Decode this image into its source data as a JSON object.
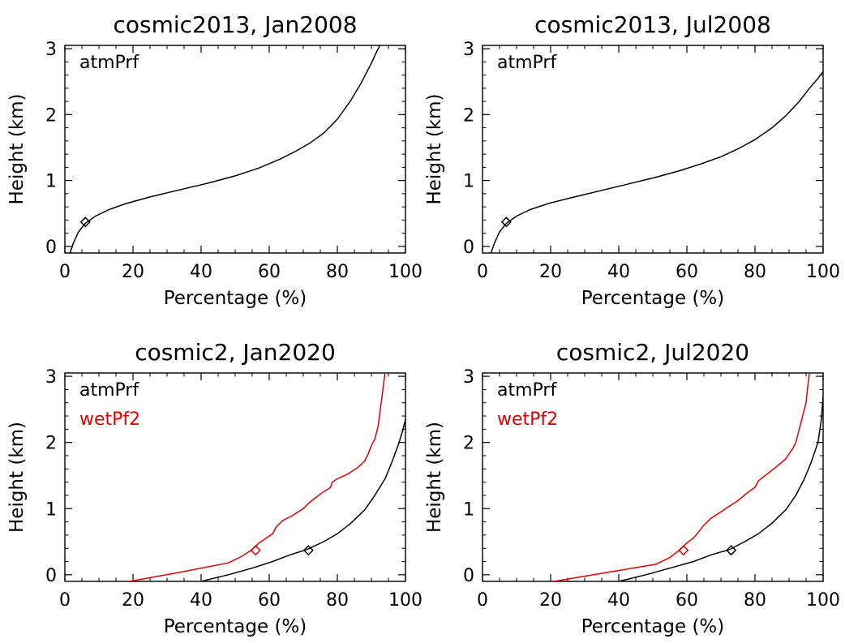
{
  "chart_data": [
    {
      "type": "line",
      "title": "cosmic2013, Jan2008",
      "xlabel": "Percentage (%)",
      "ylabel": "Height (km)",
      "xlim": [
        0,
        100
      ],
      "ylim": [
        -0.1,
        3.05
      ],
      "xticks": [
        "0",
        "20",
        "40",
        "60",
        "80",
        "100"
      ],
      "yticks": [
        "0",
        "1",
        "2",
        "3"
      ],
      "legend": "top-left",
      "series": [
        {
          "name": "atmPrf",
          "color": "#000000",
          "x": [
            1.5,
            2.5,
            4,
            6,
            9,
            13,
            18,
            25,
            33,
            42,
            50,
            57,
            63,
            68,
            72,
            76,
            80,
            84,
            87,
            90,
            91.5,
            92.5
          ],
          "y": [
            -0.1,
            0.05,
            0.22,
            0.35,
            0.46,
            0.56,
            0.65,
            0.75,
            0.85,
            0.96,
            1.07,
            1.19,
            1.32,
            1.45,
            1.57,
            1.72,
            1.93,
            2.22,
            2.48,
            2.78,
            2.95,
            3.05
          ],
          "marker": {
            "x": 6,
            "y": 0.37
          }
        }
      ]
    },
    {
      "type": "line",
      "title": "cosmic2013, Jul2008",
      "xlabel": "Percentage (%)",
      "ylabel": "Height (km)",
      "xlim": [
        0,
        100
      ],
      "ylim": [
        -0.1,
        3.05
      ],
      "xticks": [
        "0",
        "20",
        "40",
        "60",
        "80",
        "100"
      ],
      "yticks": [
        "0",
        "1",
        "2",
        "3"
      ],
      "legend": "top-left",
      "series": [
        {
          "name": "atmPrf",
          "color": "#000000",
          "x": [
            2.5,
            3.5,
            5,
            7,
            10,
            14,
            20,
            27,
            35,
            43,
            51,
            58,
            64,
            70,
            75,
            80,
            85,
            89,
            93,
            96,
            98.5,
            100
          ],
          "y": [
            -0.1,
            0.05,
            0.22,
            0.35,
            0.46,
            0.56,
            0.66,
            0.75,
            0.85,
            0.95,
            1.05,
            1.15,
            1.25,
            1.36,
            1.48,
            1.62,
            1.8,
            1.98,
            2.2,
            2.4,
            2.55,
            2.65
          ],
          "marker": {
            "x": 7,
            "y": 0.37
          }
        }
      ]
    },
    {
      "type": "line",
      "title": "cosmic2, Jan2020",
      "xlabel": "Percentage (%)",
      "ylabel": "Height (km)",
      "xlim": [
        0,
        100
      ],
      "ylim": [
        -0.1,
        3.05
      ],
      "xticks": [
        "0",
        "20",
        "40",
        "60",
        "80",
        "100"
      ],
      "yticks": [
        "0",
        "1",
        "2",
        "3"
      ],
      "legend": "top-left",
      "series": [
        {
          "name": "atmPrf",
          "color": "#000000",
          "x": [
            40,
            48,
            55,
            61,
            66,
            71,
            76,
            80,
            84,
            88,
            91,
            94,
            96,
            98,
            99.3,
            100
          ],
          "y": [
            -0.1,
            0.0,
            0.1,
            0.2,
            0.3,
            0.38,
            0.5,
            0.62,
            0.78,
            0.98,
            1.2,
            1.45,
            1.7,
            1.98,
            2.2,
            2.35
          ]
        },
        {
          "name": "wetPf2",
          "color": "#e00000",
          "x": [
            19,
            33,
            48,
            52,
            55,
            57,
            59,
            61,
            62,
            64,
            67,
            70,
            72,
            75,
            78,
            78.5,
            80,
            83,
            86,
            88,
            89,
            90,
            91,
            92,
            92.5,
            93,
            93.5,
            94
          ],
          "y": [
            -0.1,
            0.03,
            0.18,
            0.28,
            0.38,
            0.48,
            0.55,
            0.62,
            0.72,
            0.82,
            0.9,
            1.0,
            1.1,
            1.22,
            1.32,
            1.4,
            1.45,
            1.52,
            1.62,
            1.72,
            1.82,
            1.95,
            2.05,
            2.25,
            2.45,
            2.65,
            2.85,
            3.05
          ]
        }
      ],
      "markers": [
        {
          "series": "atmPrf",
          "x": 71.5,
          "y": 0.37
        },
        {
          "series": "wetPf2",
          "x": 56,
          "y": 0.37
        }
      ]
    },
    {
      "type": "line",
      "title": "cosmic2, Jul2020",
      "xlabel": "Percentage (%)",
      "ylabel": "Height (km)",
      "xlim": [
        0,
        100
      ],
      "ylim": [
        -0.1,
        3.05
      ],
      "xticks": [
        "0",
        "20",
        "40",
        "60",
        "80",
        "100"
      ],
      "yticks": [
        "0",
        "1",
        "2",
        "3"
      ],
      "legend": "top-left",
      "series": [
        {
          "name": "atmPrf",
          "color": "#000000",
          "x": [
            40,
            48,
            55,
            62,
            67,
            72.5,
            77,
            81,
            85,
            89,
            92,
            94.5,
            96.5,
            98.5,
            99.5,
            100
          ],
          "y": [
            -0.1,
            0.0,
            0.1,
            0.2,
            0.3,
            0.38,
            0.5,
            0.62,
            0.78,
            0.98,
            1.2,
            1.45,
            1.7,
            2.0,
            2.35,
            2.7
          ]
        },
        {
          "name": "wetPf2",
          "color": "#e00000",
          "x": [
            21,
            36,
            51,
            55,
            58,
            60,
            62,
            63.5,
            65,
            67,
            70,
            72,
            75,
            78,
            80,
            81,
            83,
            86,
            89,
            91,
            92,
            93,
            94,
            95,
            95.5,
            96
          ],
          "y": [
            -0.1,
            0.03,
            0.16,
            0.26,
            0.38,
            0.48,
            0.56,
            0.65,
            0.75,
            0.85,
            0.95,
            1.02,
            1.12,
            1.25,
            1.32,
            1.42,
            1.5,
            1.62,
            1.75,
            1.9,
            2.0,
            2.2,
            2.4,
            2.6,
            2.85,
            3.05
          ]
        }
      ],
      "markers": [
        {
          "series": "atmPrf",
          "x": 73,
          "y": 0.37
        },
        {
          "series": "wetPf2",
          "x": 59,
          "y": 0.37
        }
      ]
    }
  ]
}
